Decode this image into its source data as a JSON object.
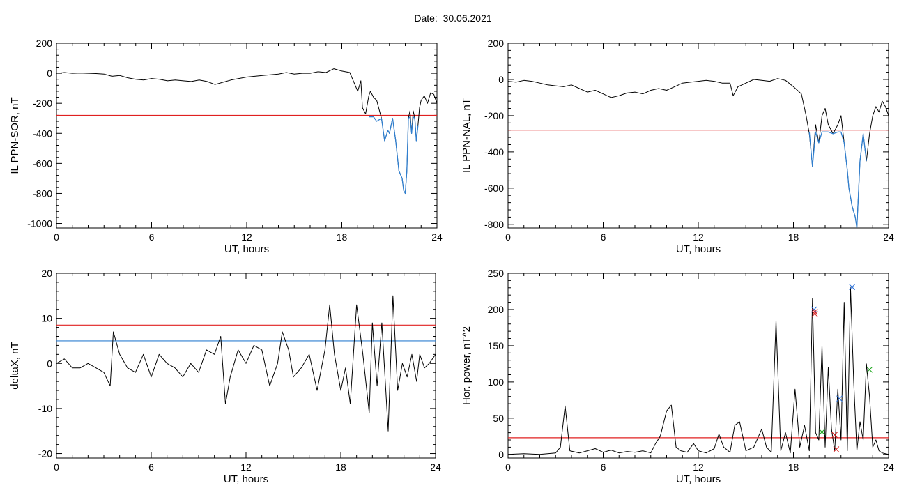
{
  "header": {
    "date_label": "Date:",
    "date_value": "30.06.2021"
  },
  "colors": {
    "trace": "#000000",
    "threshold_red": "#e02020",
    "threshold_blue": "#2f7fd0",
    "marker_red": "#d42020",
    "marker_blue": "#2a6fd8",
    "marker_green": "#1aa51a"
  },
  "chart_data": [
    {
      "type": "line",
      "ylabel": "IL PPN-SOR, nT",
      "xlabel": "UT, hours",
      "xlim": [
        0,
        24
      ],
      "ylim": [
        -1030,
        200
      ],
      "xticks": [
        0,
        6,
        12,
        18,
        24
      ],
      "yticks": [
        200,
        0,
        -200,
        -400,
        -600,
        -800,
        -1000
      ],
      "threshold_lines": [
        {
          "value": -280,
          "color": "red"
        }
      ],
      "series": [
        {
          "x": [
            0,
            0.5,
            1,
            1.5,
            2,
            2.5,
            3,
            3.5,
            4,
            4.5,
            5,
            5.5,
            6,
            6.5,
            7,
            7.5,
            8,
            8.5,
            9,
            9.5,
            10,
            10.5,
            11,
            11.5,
            12,
            12.5,
            13,
            13.5,
            14,
            14.5,
            15,
            15.5,
            16,
            16.5,
            17,
            17.5,
            18,
            18.5,
            19,
            19.2,
            19.3,
            19.5,
            19.7,
            19.8,
            20,
            20.2,
            20.5,
            20.7,
            20.9,
            21,
            21.2,
            21.4,
            21.5,
            21.6,
            21.8,
            21.9,
            22,
            22.1,
            22.2,
            22.3,
            22.4,
            22.5,
            22.6,
            22.7,
            22.8,
            22.9,
            23,
            23.2,
            23.4,
            23.6,
            23.8,
            24
          ],
          "values": [
            0,
            5,
            0,
            2,
            0,
            -2,
            -5,
            -20,
            -15,
            -30,
            -40,
            -45,
            -35,
            -40,
            -50,
            -45,
            -50,
            -55,
            -45,
            -55,
            -75,
            -60,
            -45,
            -35,
            -25,
            -20,
            -15,
            -10,
            -5,
            5,
            -5,
            0,
            0,
            10,
            5,
            30,
            15,
            5,
            -120,
            -50,
            -230,
            -270,
            -150,
            -120,
            -160,
            -180,
            -300,
            -450,
            -380,
            -400,
            -300,
            -450,
            -550,
            -650,
            -700,
            -780,
            -800,
            -650,
            -300,
            -250,
            -400,
            -250,
            -300,
            -450,
            -350,
            -230,
            -180,
            -150,
            -200,
            -130,
            -140,
            -200
          ],
          "color": "black"
        },
        {
          "x": [
            19.7,
            20,
            20.2,
            20.5,
            20.7,
            20.9,
            21,
            21.2,
            21.4,
            21.5,
            21.6,
            21.8,
            21.9,
            22,
            22.1,
            22.2,
            22.3,
            22.4,
            22.5,
            22.6,
            22.7,
            22.8
          ],
          "values": [
            -290,
            -290,
            -320,
            -300,
            -450,
            -380,
            -400,
            -300,
            -450,
            -550,
            -650,
            -700,
            -780,
            -800,
            -650,
            -300,
            -290,
            -400,
            -290,
            -300,
            -450,
            -350
          ],
          "color": "blue"
        }
      ]
    },
    {
      "type": "line",
      "ylabel": "IL PPN-NAL, nT",
      "xlabel": "UT, hours",
      "xlim": [
        0,
        24
      ],
      "ylim": [
        -820,
        200
      ],
      "xticks": [
        0,
        6,
        12,
        18,
        24
      ],
      "yticks": [
        200,
        0,
        -200,
        -400,
        -600,
        -800
      ],
      "threshold_lines": [
        {
          "value": -280,
          "color": "red"
        }
      ],
      "series": [
        {
          "x": [
            0,
            0.5,
            1,
            1.5,
            2,
            2.5,
            3,
            3.5,
            4,
            4.5,
            5,
            5.5,
            6,
            6.5,
            7,
            7.5,
            8,
            8.5,
            9,
            9.5,
            10,
            10.5,
            11,
            11.5,
            12,
            12.5,
            13,
            13.5,
            14,
            14.2,
            14.5,
            15,
            15.5,
            16,
            16.5,
            17,
            17.5,
            18,
            18.5,
            18.8,
            19,
            19.2,
            19.4,
            19.6,
            19.8,
            20,
            20.2,
            20.5,
            20.8,
            21,
            21.2,
            21.4,
            21.5,
            21.7,
            21.9,
            22,
            22.2,
            22.4,
            22.6,
            22.8,
            23,
            23.2,
            23.4,
            23.6,
            23.8,
            24
          ],
          "values": [
            -10,
            -15,
            -5,
            -10,
            -20,
            -30,
            -35,
            -40,
            -30,
            -50,
            -70,
            -60,
            -80,
            -100,
            -90,
            -75,
            -70,
            -80,
            -60,
            -50,
            -60,
            -40,
            -20,
            -15,
            -10,
            -5,
            -10,
            -20,
            -20,
            -90,
            -40,
            -20,
            0,
            -5,
            -10,
            5,
            -5,
            -40,
            -80,
            -200,
            -300,
            -480,
            -250,
            -350,
            -200,
            -160,
            -250,
            -300,
            -250,
            -200,
            -350,
            -500,
            -600,
            -700,
            -760,
            -820,
            -450,
            -300,
            -450,
            -300,
            -200,
            -150,
            -180,
            -120,
            -150,
            -200
          ],
          "color": "black"
        },
        {
          "x": [
            19,
            19.2,
            19.4,
            19.6,
            19.8,
            20,
            20.2,
            20.5,
            20.8,
            21,
            21.2,
            21.4,
            21.5,
            21.7,
            21.9,
            22,
            22.2,
            22.4,
            22.6
          ],
          "values": [
            -290,
            -480,
            -290,
            -350,
            -290,
            -290,
            -290,
            -300,
            -290,
            -290,
            -350,
            -500,
            -600,
            -700,
            -760,
            -820,
            -450,
            -300,
            -450
          ],
          "color": "blue"
        }
      ]
    },
    {
      "type": "line",
      "ylabel": "deltaX, nT",
      "xlabel": "UT, hours",
      "xlim": [
        0,
        24
      ],
      "ylim": [
        -21,
        20
      ],
      "xticks": [
        0,
        6,
        12,
        18,
        24
      ],
      "yticks": [
        20,
        10,
        0,
        -10,
        -20
      ],
      "threshold_lines": [
        {
          "value": 8.5,
          "color": "red"
        },
        {
          "value": 5,
          "color": "blue"
        }
      ],
      "series": [
        {
          "x": [
            0,
            0.5,
            1,
            1.5,
            2,
            2.5,
            3,
            3.4,
            3.6,
            4,
            4.5,
            5,
            5.5,
            6,
            6.5,
            7,
            7.5,
            8,
            8.5,
            9,
            9.5,
            10,
            10.4,
            10.7,
            11,
            11.5,
            12,
            12.5,
            13,
            13.5,
            14,
            14.3,
            14.7,
            15,
            15.5,
            16,
            16.5,
            17,
            17.3,
            17.6,
            18,
            18.3,
            18.6,
            19,
            19.4,
            19.8,
            20,
            20.3,
            20.6,
            21,
            21.3,
            21.6,
            21.9,
            22.2,
            22.5,
            22.8,
            23,
            23.3,
            23.6,
            24
          ],
          "values": [
            0,
            1,
            -1,
            -1,
            0,
            -1,
            -2,
            -5,
            7,
            2,
            -1,
            -2,
            2,
            -3,
            2,
            0,
            -1,
            -3,
            0,
            -2,
            3,
            2,
            6,
            -9,
            -3,
            3,
            0,
            4,
            3,
            -5,
            0,
            7,
            3,
            -3,
            -1,
            2,
            -6,
            3,
            13,
            2,
            -6,
            -1,
            -9,
            13,
            2,
            -11,
            9,
            -5,
            9,
            -15,
            15,
            -6,
            0,
            -3,
            2,
            -4,
            2,
            -1,
            0,
            2
          ],
          "color": "black"
        }
      ]
    },
    {
      "type": "line",
      "ylabel": "Hor. power, nT^2",
      "xlabel": "UT, hours",
      "xlim": [
        0,
        24
      ],
      "ylim": [
        -5,
        250
      ],
      "xticks": [
        0,
        6,
        12,
        18,
        24
      ],
      "yticks": [
        250,
        200,
        150,
        100,
        50,
        0
      ],
      "threshold_lines": [
        {
          "value": 23,
          "color": "red"
        }
      ],
      "series": [
        {
          "x": [
            0,
            1,
            2,
            3,
            3.3,
            3.6,
            3.9,
            4.5,
            5,
            5.5,
            6,
            6.5,
            7,
            7.5,
            8,
            8.5,
            9,
            9.3,
            9.6,
            10,
            10.3,
            10.6,
            10.9,
            11.3,
            11.7,
            12,
            12.5,
            13,
            13.3,
            13.6,
            14,
            14.3,
            14.6,
            15,
            15.5,
            16,
            16.3,
            16.6,
            16.9,
            17.2,
            17.5,
            17.8,
            18.1,
            18.4,
            18.7,
            19,
            19.2,
            19.4,
            19.6,
            19.8,
            20,
            20.2,
            20.4,
            20.6,
            20.8,
            21,
            21.2,
            21.4,
            21.6,
            21.8,
            22,
            22.2,
            22.4,
            22.6,
            22.8,
            23,
            23.2,
            23.4,
            23.6,
            24
          ],
          "values": [
            0,
            1,
            0,
            2,
            10,
            67,
            5,
            2,
            5,
            8,
            3,
            6,
            2,
            4,
            3,
            5,
            2,
            15,
            25,
            60,
            68,
            10,
            5,
            3,
            15,
            5,
            2,
            8,
            28,
            10,
            3,
            40,
            45,
            5,
            10,
            35,
            10,
            3,
            185,
            5,
            30,
            2,
            90,
            10,
            40,
            5,
            215,
            30,
            20,
            150,
            10,
            120,
            35,
            5,
            90,
            20,
            210,
            5,
            230,
            100,
            5,
            45,
            20,
            125,
            80,
            10,
            20,
            5,
            2,
            0
          ],
          "color": "black"
        }
      ],
      "markers": [
        {
          "x": 19.3,
          "y": 200,
          "color": "blue"
        },
        {
          "x": 19.35,
          "y": 197,
          "color": "red"
        },
        {
          "x": 19.35,
          "y": 194,
          "color": "red"
        },
        {
          "x": 19.8,
          "y": 31,
          "color": "green"
        },
        {
          "x": 20.6,
          "y": 27,
          "color": "red"
        },
        {
          "x": 20.7,
          "y": 7,
          "color": "red"
        },
        {
          "x": 20.9,
          "y": 77,
          "color": "blue"
        },
        {
          "x": 21.7,
          "y": 231,
          "color": "blue"
        },
        {
          "x": 22.8,
          "y": 117,
          "color": "green"
        }
      ]
    }
  ]
}
